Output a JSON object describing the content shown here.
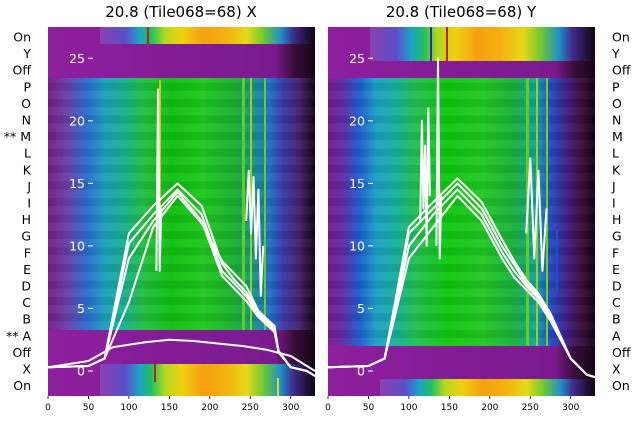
{
  "chart_data": [
    {
      "type": "heatmap",
      "title": "20.8 (Tile068=68) X",
      "rows_top_to_bottom": [
        "On",
        "Y",
        "Off",
        "P",
        "O",
        "N",
        "** M",
        "L",
        "K",
        "J",
        "I",
        "H",
        "G",
        "F",
        "E",
        "D",
        "C",
        "B",
        "** A",
        "Off",
        "X",
        "On"
      ],
      "x_ticks": [
        0,
        50,
        100,
        150,
        200,
        250,
        300
      ],
      "y_ticks": [
        0,
        5,
        10,
        15,
        20,
        25
      ],
      "xlim": [
        0,
        330
      ],
      "ylim": [
        -2,
        27.5
      ],
      "colormap": "spectral (purple to green to yellow to red)",
      "overlay_lines": "white",
      "series": [
        {
          "x": [
            0,
            50,
            70,
            100,
            130,
            160,
            190,
            215,
            230,
            245,
            260,
            280,
            285,
            300,
            320,
            330
          ],
          "y": [
            0.3,
            0.4,
            1.0,
            10.2,
            12.5,
            14.5,
            12.5,
            8.0,
            7.0,
            6.0,
            4.5,
            3.2,
            1.5,
            0.3,
            0.0,
            -0.4
          ]
        },
        {
          "x": [
            0,
            50,
            70,
            100,
            130,
            160,
            190,
            215,
            230,
            245,
            260,
            280,
            285,
            300,
            320,
            330
          ],
          "y": [
            0.3,
            0.4,
            1.0,
            11.0,
            13.2,
            15.0,
            13.2,
            8.6,
            7.3,
            6.3,
            4.7,
            3.4,
            1.6,
            0.3,
            0.0,
            -0.4
          ]
        },
        {
          "x": [
            0,
            50,
            70,
            100,
            130,
            160,
            190,
            215,
            230,
            245,
            260,
            280,
            285,
            300,
            320,
            330
          ],
          "y": [
            0.3,
            0.4,
            1.0,
            9.0,
            12.0,
            14.3,
            12.0,
            7.6,
            6.6,
            5.6,
            4.3,
            3.1,
            1.5,
            0.3,
            0.0,
            -0.4
          ]
        },
        {
          "x": [
            0,
            50,
            70,
            100,
            130,
            160,
            190,
            215,
            230,
            245,
            260,
            280,
            285,
            300,
            320,
            330
          ],
          "y": [
            0.3,
            0.4,
            1.0,
            5.5,
            11.5,
            14.0,
            11.8,
            8.8,
            7.8,
            6.8,
            4.8,
            3.6,
            1.5,
            0.3,
            0.0,
            -0.4
          ]
        },
        {
          "x": [
            0,
            50,
            80,
            120,
            150,
            180,
            210,
            240,
            270,
            300,
            330
          ],
          "y": [
            0.3,
            0.8,
            1.9,
            2.3,
            2.5,
            2.4,
            2.2,
            2.0,
            1.7,
            1.2,
            0.0
          ]
        },
        {
          "x": [
            134,
            136,
            138,
            140
          ],
          "y": [
            8,
            22.5,
            8,
            13
          ]
        },
        {
          "x": [
            245,
            248,
            251,
            254,
            257,
            260,
            263,
            266
          ],
          "y": [
            12,
            16,
            11,
            15.5,
            9,
            14.5,
            6,
            10
          ]
        }
      ]
    },
    {
      "type": "heatmap",
      "title": "20.8 (Tile068=68) Y",
      "rows_top_to_bottom": [
        "On",
        "Y",
        "Off",
        "P",
        "O",
        "N",
        "M",
        "L",
        "K",
        "J",
        "I",
        "H",
        "G",
        "F",
        "E",
        "D",
        "C",
        "B",
        "A",
        "Off",
        "X",
        "On"
      ],
      "x_ticks": [
        0,
        50,
        100,
        150,
        200,
        250,
        300
      ],
      "y_ticks": [
        0,
        5,
        10,
        15,
        20,
        25
      ],
      "xlim": [
        0,
        330
      ],
      "ylim": [
        -2,
        27.5
      ],
      "colormap": "spectral (purple to green to yellow to red)",
      "overlay_lines": "white",
      "series": [
        {
          "x": [
            0,
            50,
            70,
            100,
            130,
            160,
            190,
            215,
            230,
            245,
            260,
            275,
            300,
            320,
            330
          ],
          "y": [
            0.3,
            0.4,
            1.0,
            11.0,
            13.0,
            15.0,
            13.0,
            10.0,
            8.5,
            7.0,
            6.0,
            4.5,
            1.0,
            -0.3,
            -0.5
          ]
        },
        {
          "x": [
            0,
            50,
            70,
            100,
            130,
            160,
            190,
            215,
            230,
            245,
            260,
            275,
            300,
            320,
            330
          ],
          "y": [
            0.3,
            0.4,
            1.0,
            10.0,
            12.5,
            14.5,
            12.5,
            9.5,
            8.0,
            6.8,
            5.8,
            4.3,
            1.0,
            -0.3,
            -0.5
          ]
        },
        {
          "x": [
            0,
            50,
            70,
            100,
            130,
            160,
            190,
            215,
            230,
            245,
            260,
            275,
            300,
            320,
            330
          ],
          "y": [
            0.3,
            0.4,
            1.0,
            9.0,
            11.5,
            14.0,
            12.0,
            9.0,
            7.5,
            6.5,
            5.5,
            4.0,
            1.0,
            -0.3,
            -0.5
          ]
        },
        {
          "x": [
            0,
            50,
            70,
            100,
            130,
            160,
            190,
            215,
            230,
            245,
            260,
            275,
            300,
            320,
            330
          ],
          "y": [
            0.3,
            0.4,
            1.0,
            11.5,
            13.5,
            15.4,
            13.5,
            10.5,
            8.8,
            7.3,
            6.2,
            4.6,
            1.0,
            -0.3,
            -0.5
          ]
        },
        {
          "x": [
            114,
            116,
            118,
            120,
            122,
            124,
            126
          ],
          "y": [
            12,
            20,
            13,
            18,
            10,
            21,
            14
          ]
        },
        {
          "x": [
            134,
            136,
            138,
            140
          ],
          "y": [
            10,
            25,
            9,
            14
          ]
        },
        {
          "x": [
            245,
            250,
            255,
            260,
            265,
            270
          ],
          "y": [
            11,
            17,
            9,
            16,
            8,
            13
          ]
        }
      ]
    }
  ]
}
